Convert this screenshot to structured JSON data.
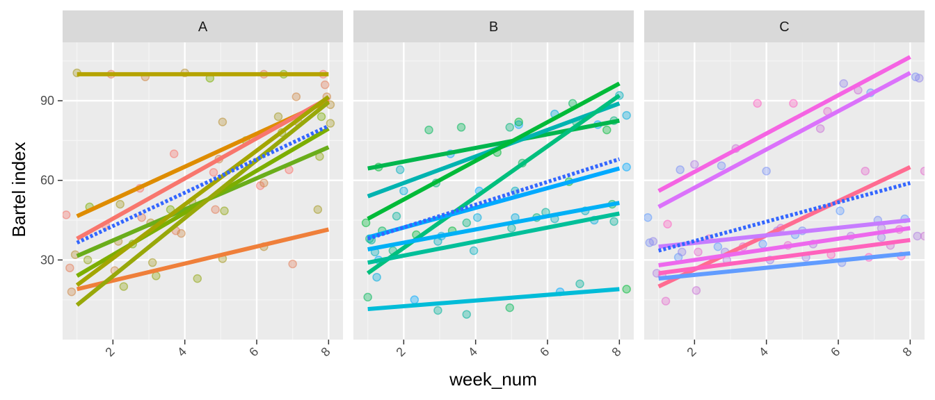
{
  "chart_data": {
    "type": "scatter",
    "xlabel": "week_num",
    "ylabel": "Bartel index",
    "xlim": [
      0.6,
      8.4
    ],
    "ylim": [
      0,
      112
    ],
    "x_ticks": [
      2,
      4,
      6,
      8
    ],
    "y_ticks": [
      30,
      60,
      90
    ],
    "grid": true,
    "legend": "none",
    "facets": [
      {
        "label": "A",
        "color_range": [
          "#F8766D",
          "#7CAE00"
        ],
        "points": [
          [
            0.7,
            47
          ],
          [
            0.8,
            27
          ],
          [
            0.85,
            18
          ],
          [
            0.95,
            32
          ],
          [
            1.0,
            100.5
          ],
          [
            1.3,
            30
          ],
          [
            1.35,
            50
          ],
          [
            1.8,
            43
          ],
          [
            1.95,
            100
          ],
          [
            2.05,
            26
          ],
          [
            2.15,
            37
          ],
          [
            2.2,
            51
          ],
          [
            2.3,
            20
          ],
          [
            2.55,
            36
          ],
          [
            2.75,
            57
          ],
          [
            2.8,
            46
          ],
          [
            2.9,
            99
          ],
          [
            3.05,
            44
          ],
          [
            3.1,
            29
          ],
          [
            3.2,
            24
          ],
          [
            3.6,
            49
          ],
          [
            3.7,
            70
          ],
          [
            3.75,
            41
          ],
          [
            3.9,
            40
          ],
          [
            4.0,
            100.5
          ],
          [
            4.2,
            52
          ],
          [
            4.35,
            23
          ],
          [
            4.7,
            98.5
          ],
          [
            4.8,
            63
          ],
          [
            4.85,
            49
          ],
          [
            4.95,
            68
          ],
          [
            5.05,
            82
          ],
          [
            5.05,
            30.5
          ],
          [
            5.1,
            48.5
          ],
          [
            5.7,
            75
          ],
          [
            6.1,
            58
          ],
          [
            6.2,
            100
          ],
          [
            6.2,
            59
          ],
          [
            6.2,
            35
          ],
          [
            6.6,
            84
          ],
          [
            6.7,
            78
          ],
          [
            6.75,
            100
          ],
          [
            6.9,
            64
          ],
          [
            7.0,
            28.5
          ],
          [
            7.1,
            91.5
          ],
          [
            7.15,
            82
          ],
          [
            7.7,
            49
          ],
          [
            7.75,
            69
          ],
          [
            7.8,
            84
          ],
          [
            7.85,
            100
          ],
          [
            7.9,
            96
          ],
          [
            7.95,
            91.5
          ],
          [
            8.05,
            88.5
          ],
          [
            8.05,
            81.5
          ]
        ],
        "lines": [
          {
            "x": [
              1,
              8
            ],
            "y": [
              100,
              100
            ],
            "color": "#b5a300"
          },
          {
            "x": [
              1,
              8
            ],
            "y": [
              46.5,
              90
            ],
            "color": "#de8c00"
          },
          {
            "x": [
              1,
              8
            ],
            "y": [
              38,
              91
            ],
            "color": "#f8766d"
          },
          {
            "x": [
              1,
              8
            ],
            "y": [
              19,
              41.5
            ],
            "color": "#ef7f3a"
          },
          {
            "x": [
              1,
              8
            ],
            "y": [
              31.5,
              72.5
            ],
            "color": "#6aad1b"
          },
          {
            "x": [
              1,
              8
            ],
            "y": [
              24,
              79.5
            ],
            "color": "#7cae00"
          },
          {
            "x": [
              1,
              8
            ],
            "y": [
              20.5,
              91.5
            ],
            "color": "#a3a500"
          },
          {
            "x": [
              1,
              8
            ],
            "y": [
              13,
              89.5
            ],
            "color": "#98a80a"
          }
        ],
        "mean_line": {
          "x": [
            1,
            8
          ],
          "y": [
            36.5,
            80.5
          ],
          "color": "#3366ff"
        }
      },
      {
        "label": "B",
        "color_range": [
          "#00BA38",
          "#00A9FF"
        ],
        "points": [
          [
            0.95,
            44
          ],
          [
            1.0,
            16
          ],
          [
            1.05,
            38
          ],
          [
            1.1,
            37.5
          ],
          [
            1.2,
            33
          ],
          [
            1.25,
            23.5
          ],
          [
            1.3,
            30
          ],
          [
            1.3,
            65
          ],
          [
            1.4,
            41
          ],
          [
            1.7,
            33.5
          ],
          [
            1.8,
            46.5
          ],
          [
            1.9,
            64
          ],
          [
            2.0,
            56
          ],
          [
            2.3,
            15
          ],
          [
            2.35,
            39.5
          ],
          [
            2.7,
            79
          ],
          [
            2.9,
            59
          ],
          [
            2.95,
            11
          ],
          [
            2.95,
            37
          ],
          [
            3.05,
            39
          ],
          [
            3.3,
            70
          ],
          [
            3.35,
            41
          ],
          [
            3.6,
            80
          ],
          [
            3.75,
            44
          ],
          [
            3.75,
            9.5
          ],
          [
            3.95,
            33.5
          ],
          [
            4.05,
            46
          ],
          [
            4.1,
            56
          ],
          [
            4.6,
            70.5
          ],
          [
            4.95,
            12
          ],
          [
            4.95,
            80
          ],
          [
            5.0,
            42
          ],
          [
            5.1,
            56
          ],
          [
            5.1,
            46
          ],
          [
            5.2,
            81
          ],
          [
            5.2,
            82
          ],
          [
            5.3,
            66.5
          ],
          [
            5.7,
            46
          ],
          [
            5.95,
            48
          ],
          [
            6.2,
            45.5
          ],
          [
            6.2,
            85
          ],
          [
            6.35,
            18
          ],
          [
            6.6,
            59.5
          ],
          [
            6.7,
            89
          ],
          [
            6.8,
            82
          ],
          [
            6.9,
            21
          ],
          [
            7.05,
            48.5
          ],
          [
            7.3,
            45
          ],
          [
            7.4,
            81
          ],
          [
            7.65,
            79
          ],
          [
            7.8,
            51
          ],
          [
            7.85,
            82.5
          ],
          [
            7.85,
            44.5
          ],
          [
            8.0,
            92
          ],
          [
            8.2,
            84.5
          ],
          [
            8.2,
            65
          ],
          [
            8.2,
            19
          ]
        ],
        "lines": [
          {
            "x": [
              1,
              8
            ],
            "y": [
              64.5,
              82.5
            ],
            "color": "#00b64d"
          },
          {
            "x": [
              1,
              8
            ],
            "y": [
              54,
              89
            ],
            "color": "#00b3b0"
          },
          {
            "x": [
              1,
              8
            ],
            "y": [
              45.5,
              96.5
            ],
            "color": "#00ba38"
          },
          {
            "x": [
              1,
              8
            ],
            "y": [
              25,
              92
            ],
            "color": "#00bf7d"
          },
          {
            "x": [
              1,
              8
            ],
            "y": [
              38.5,
              64.5
            ],
            "color": "#00a9ff"
          },
          {
            "x": [
              1,
              8
            ],
            "y": [
              34,
              51.5
            ],
            "color": "#00b0f6"
          },
          {
            "x": [
              1,
              8
            ],
            "y": [
              29,
              47.5
            ],
            "color": "#00bf99"
          },
          {
            "x": [
              1,
              8
            ],
            "y": [
              11.5,
              19
            ],
            "color": "#00bcd8"
          }
        ],
        "mean_line": {
          "x": [
            1,
            8
          ],
          "y": [
            38,
            68
          ],
          "color": "#3366ff"
        }
      },
      {
        "label": "C",
        "color_range": [
          "#619CFF",
          "#FF61C3"
        ],
        "points": [
          [
            0.7,
            46
          ],
          [
            0.75,
            36.5
          ],
          [
            0.85,
            37
          ],
          [
            0.95,
            25
          ],
          [
            1.1,
            24
          ],
          [
            1.2,
            14.5
          ],
          [
            1.25,
            43.5
          ],
          [
            1.55,
            31
          ],
          [
            1.6,
            64
          ],
          [
            1.65,
            33
          ],
          [
            2.0,
            66
          ],
          [
            2.05,
            18.5
          ],
          [
            2.1,
            33
          ],
          [
            2.4,
            38
          ],
          [
            2.65,
            35
          ],
          [
            2.75,
            65.5
          ],
          [
            2.85,
            33
          ],
          [
            2.9,
            30
          ],
          [
            3.15,
            72
          ],
          [
            3.35,
            35
          ],
          [
            3.75,
            89
          ],
          [
            3.9,
            36
          ],
          [
            4.0,
            63.5
          ],
          [
            4.1,
            30
          ],
          [
            4.3,
            41
          ],
          [
            4.4,
            42
          ],
          [
            4.6,
            35.5
          ],
          [
            4.75,
            89
          ],
          [
            4.8,
            39.5
          ],
          [
            5.0,
            41
          ],
          [
            5.1,
            31
          ],
          [
            5.3,
            36
          ],
          [
            5.5,
            79.5
          ],
          [
            5.7,
            86
          ],
          [
            5.8,
            32
          ],
          [
            6.05,
            48.5
          ],
          [
            6.1,
            29
          ],
          [
            6.15,
            96.5
          ],
          [
            6.35,
            39
          ],
          [
            6.55,
            94
          ],
          [
            6.75,
            63.5
          ],
          [
            6.85,
            31
          ],
          [
            6.9,
            93
          ],
          [
            7.1,
            45
          ],
          [
            7.2,
            38.5
          ],
          [
            7.2,
            42
          ],
          [
            7.45,
            35.5
          ],
          [
            7.7,
            41.5
          ],
          [
            7.75,
            31.5
          ],
          [
            7.85,
            45.5
          ],
          [
            8.15,
            99
          ],
          [
            8.25,
            98.5
          ],
          [
            8.2,
            39
          ],
          [
            8.4,
            39
          ],
          [
            8.4,
            63.5
          ]
        ],
        "lines": [
          {
            "x": [
              1,
              8
            ],
            "y": [
              56,
              106.5
            ],
            "color": "#f564e3"
          },
          {
            "x": [
              1,
              8
            ],
            "y": [
              50,
              100.5
            ],
            "color": "#db72fb"
          },
          {
            "x": [
              1,
              8
            ],
            "y": [
              20,
              65
            ],
            "color": "#ff6c91"
          },
          {
            "x": [
              1,
              8
            ],
            "y": [
              35,
              45
            ],
            "color": "#c77cff"
          },
          {
            "x": [
              1,
              8
            ],
            "y": [
              28,
              42
            ],
            "color": "#ed68ed"
          },
          {
            "x": [
              1,
              8
            ],
            "y": [
              25,
              37.5
            ],
            "color": "#ff62bc"
          },
          {
            "x": [
              1,
              8
            ],
            "y": [
              23,
              32.5
            ],
            "color": "#619cff"
          }
        ],
        "mean_line": {
          "x": [
            1,
            8
          ],
          "y": [
            33.5,
            59
          ],
          "color": "#3366ff"
        }
      }
    ]
  }
}
